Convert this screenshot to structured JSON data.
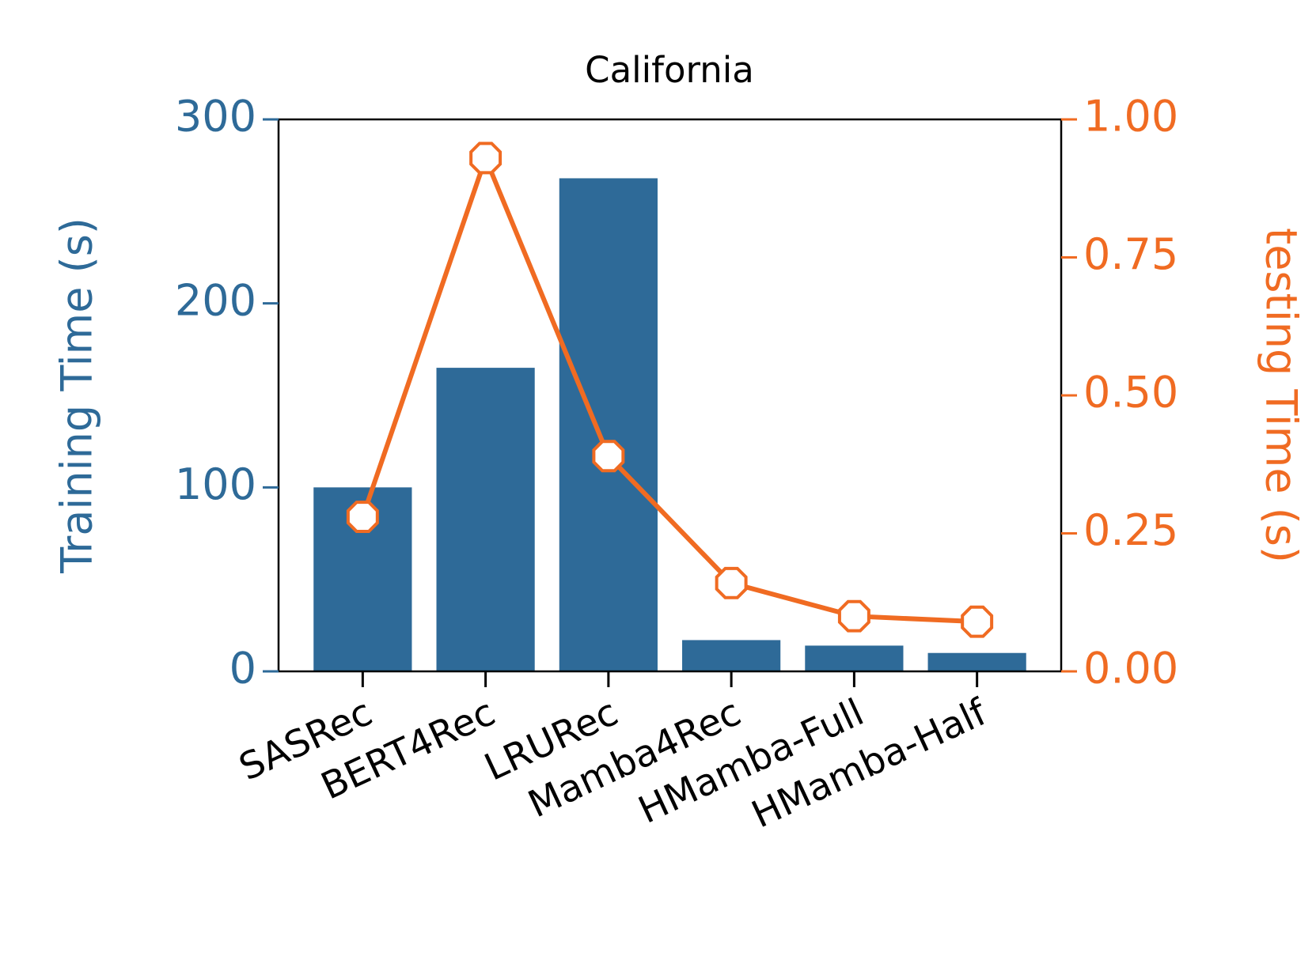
{
  "chart_data": {
    "type": "bar",
    "title": "California",
    "categories": [
      "SASRec",
      "BERT4Rec",
      "LRURec",
      "Mamba4Rec",
      "HMamba-Full",
      "HMamba-Half"
    ],
    "ylabel": "Training Time (s)",
    "y2label": "testing Time (s)",
    "ylim": [
      0,
      300
    ],
    "yticks": [
      0,
      100,
      200,
      300
    ],
    "y2lim": [
      0,
      1
    ],
    "y2ticks": [
      {
        "value": 0,
        "label": "0.00"
      },
      {
        "value": 0.25,
        "label": "0.25"
      },
      {
        "value": 0.5,
        "label": "0.50"
      },
      {
        "value": 0.75,
        "label": "0.75"
      },
      {
        "value": 1,
        "label": "1.00"
      }
    ],
    "series": [
      {
        "name": "Training Time",
        "type": "bar",
        "color": "#2e6a98",
        "values": [
          100,
          165,
          268,
          17,
          14,
          10
        ]
      },
      {
        "name": "testing Time",
        "type": "line",
        "axis": "y2",
        "color": "#f06b22",
        "values": [
          0.28,
          0.93,
          0.39,
          0.16,
          0.1,
          0.09
        ]
      }
    ]
  }
}
